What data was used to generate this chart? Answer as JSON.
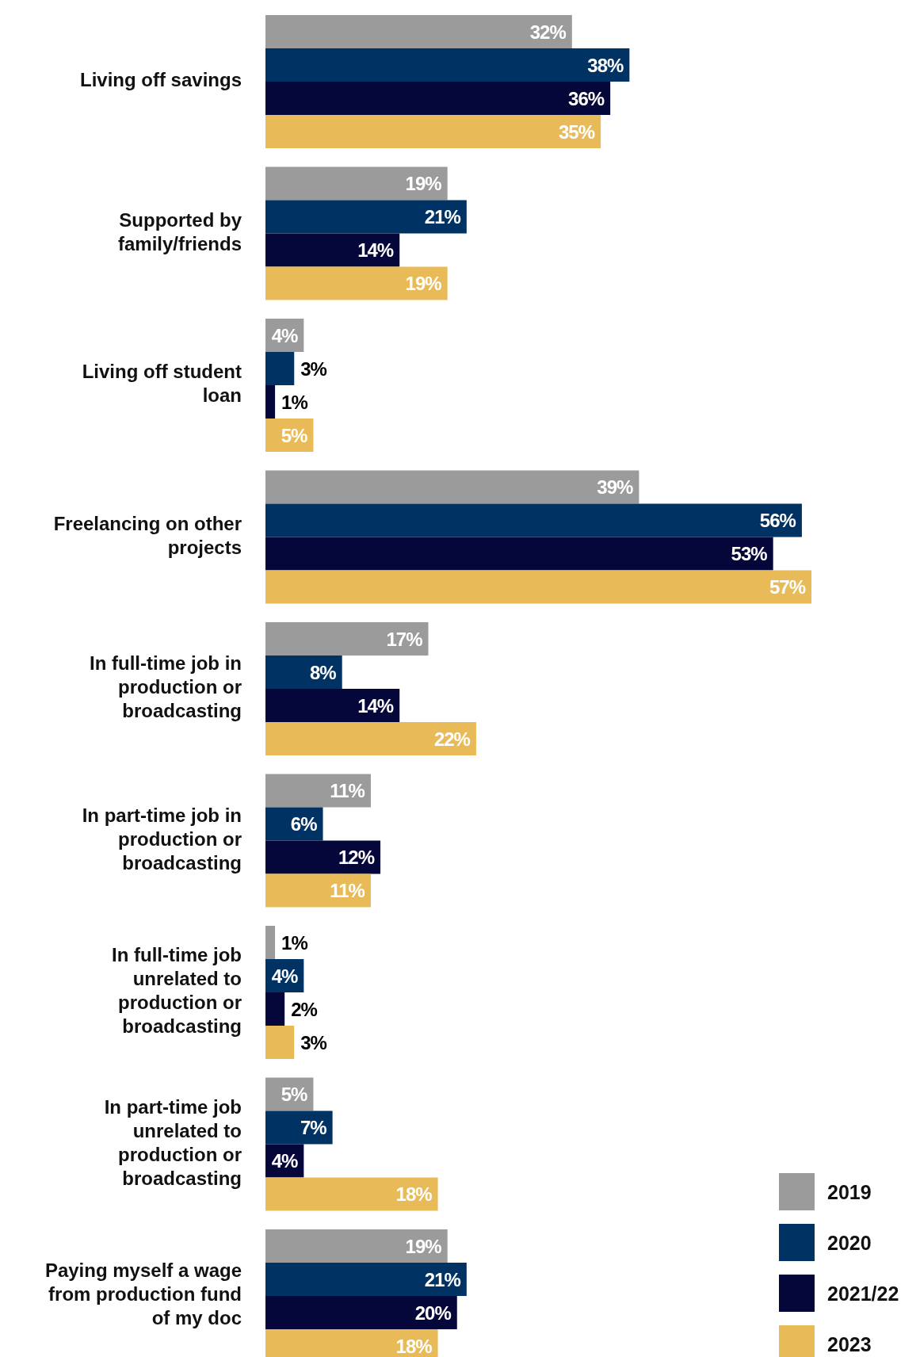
{
  "chart_data": {
    "type": "bar",
    "orientation": "horizontal",
    "legend": "bottom right",
    "categories": [
      "Living off savings",
      "Supported by family/friends",
      "Living off student loan",
      "Freelancing on other projects",
      "In full-time job in production or broadcasting",
      "In part-time job in production or broadcasting",
      "In full-time job unrelated to production or broadcasting",
      "In part-time job unrelated to production or broadcasting",
      "Paying myself a wage from production fund of my doc"
    ],
    "series": [
      {
        "name": "2019",
        "color": "#9b9b9b",
        "values": [
          32,
          19,
          4,
          39,
          17,
          11,
          1,
          5,
          19
        ],
        "value_labels": [
          "32%",
          "19%",
          "4%",
          "39%",
          "17%",
          "11%",
          "1%",
          "5%",
          "19%"
        ]
      },
      {
        "name": "2020",
        "color": "#003263",
        "values": [
          38,
          21,
          3,
          56,
          8,
          6,
          4,
          7,
          21
        ],
        "value_labels": [
          "38%",
          "21%",
          "3%",
          "56%",
          "8%",
          "6%",
          "4%",
          "7%",
          "21%"
        ]
      },
      {
        "name": "2021/22",
        "color": "#05073a",
        "values": [
          36,
          14,
          1,
          53,
          14,
          12,
          2,
          4,
          20
        ],
        "value_labels": [
          "36%",
          "14%",
          "1%",
          "53%",
          "14%",
          "12%",
          "2%",
          "4%",
          "20%"
        ]
      },
      {
        "name": "2023",
        "color": "#e9bb58",
        "values": [
          35,
          19,
          5,
          57,
          22,
          11,
          3,
          18,
          18
        ],
        "value_labels": [
          "35%",
          "19%",
          "5%",
          "57%",
          "22%",
          "11%",
          "3%",
          "18%",
          "18%"
        ]
      }
    ]
  }
}
